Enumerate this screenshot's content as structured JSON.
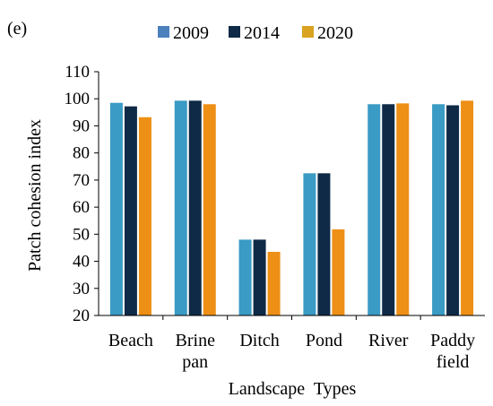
{
  "panel_label": "(e)",
  "chart_data": {
    "type": "bar",
    "title": "",
    "xlabel": "Landscape  Types",
    "ylabel": "Patch cohesion index",
    "ylim": [
      20,
      110
    ],
    "yticks": [
      20,
      30,
      40,
      50,
      60,
      70,
      80,
      90,
      100,
      110
    ],
    "grid": false,
    "legend_position": "top",
    "categories": [
      [
        "Beach"
      ],
      [
        "Brine",
        "pan"
      ],
      [
        "Ditch"
      ],
      [
        "Pond"
      ],
      [
        "River"
      ],
      [
        "Paddy",
        "field"
      ]
    ],
    "series": [
      {
        "name": "2009",
        "color": "#3a9bc4",
        "values": [
          98.5,
          99.3,
          48.0,
          72.5,
          98.0,
          98.0
        ]
      },
      {
        "name": "2014",
        "color": "#0e2a47",
        "values": [
          97.2,
          99.3,
          48.0,
          72.5,
          98.0,
          97.6
        ]
      },
      {
        "name": "2020",
        "color": "#ee8f16",
        "values": [
          93.2,
          98.0,
          43.5,
          51.8,
          98.3,
          99.3
        ]
      }
    ],
    "legend_swatch_colors": [
      "#4b81bd",
      "#0e2a47",
      "#d9a320"
    ]
  }
}
